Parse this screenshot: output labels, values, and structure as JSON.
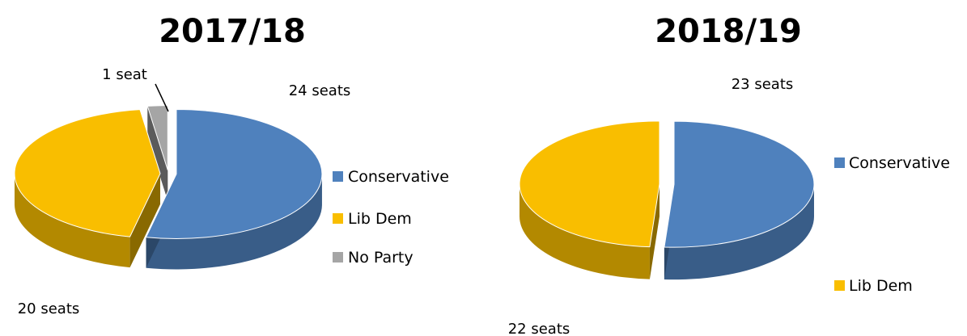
{
  "chart_data": [
    {
      "type": "pie",
      "title": "2017/18",
      "categories": [
        "Conservative",
        "Lib Dem",
        "No Party"
      ],
      "values": [
        24,
        20,
        1
      ],
      "data_labels": [
        "24 seats",
        "20 seats",
        "1 seat"
      ],
      "colors": [
        "#4F81BD",
        "#F9BE00",
        "#A5A5A5"
      ],
      "legend": {
        "position": "right",
        "entries": [
          "Conservative",
          "Lib Dem",
          "No Party"
        ]
      }
    },
    {
      "type": "pie",
      "title": "2018/19",
      "categories": [
        "Conservative",
        "Lib Dem"
      ],
      "values": [
        23,
        22
      ],
      "data_labels": [
        "23 seats",
        "22 seats"
      ],
      "colors": [
        "#4F81BD",
        "#F9BE00"
      ],
      "legend": {
        "position": "right",
        "entries": [
          "Conservative",
          "Lib Dem"
        ]
      }
    }
  ]
}
